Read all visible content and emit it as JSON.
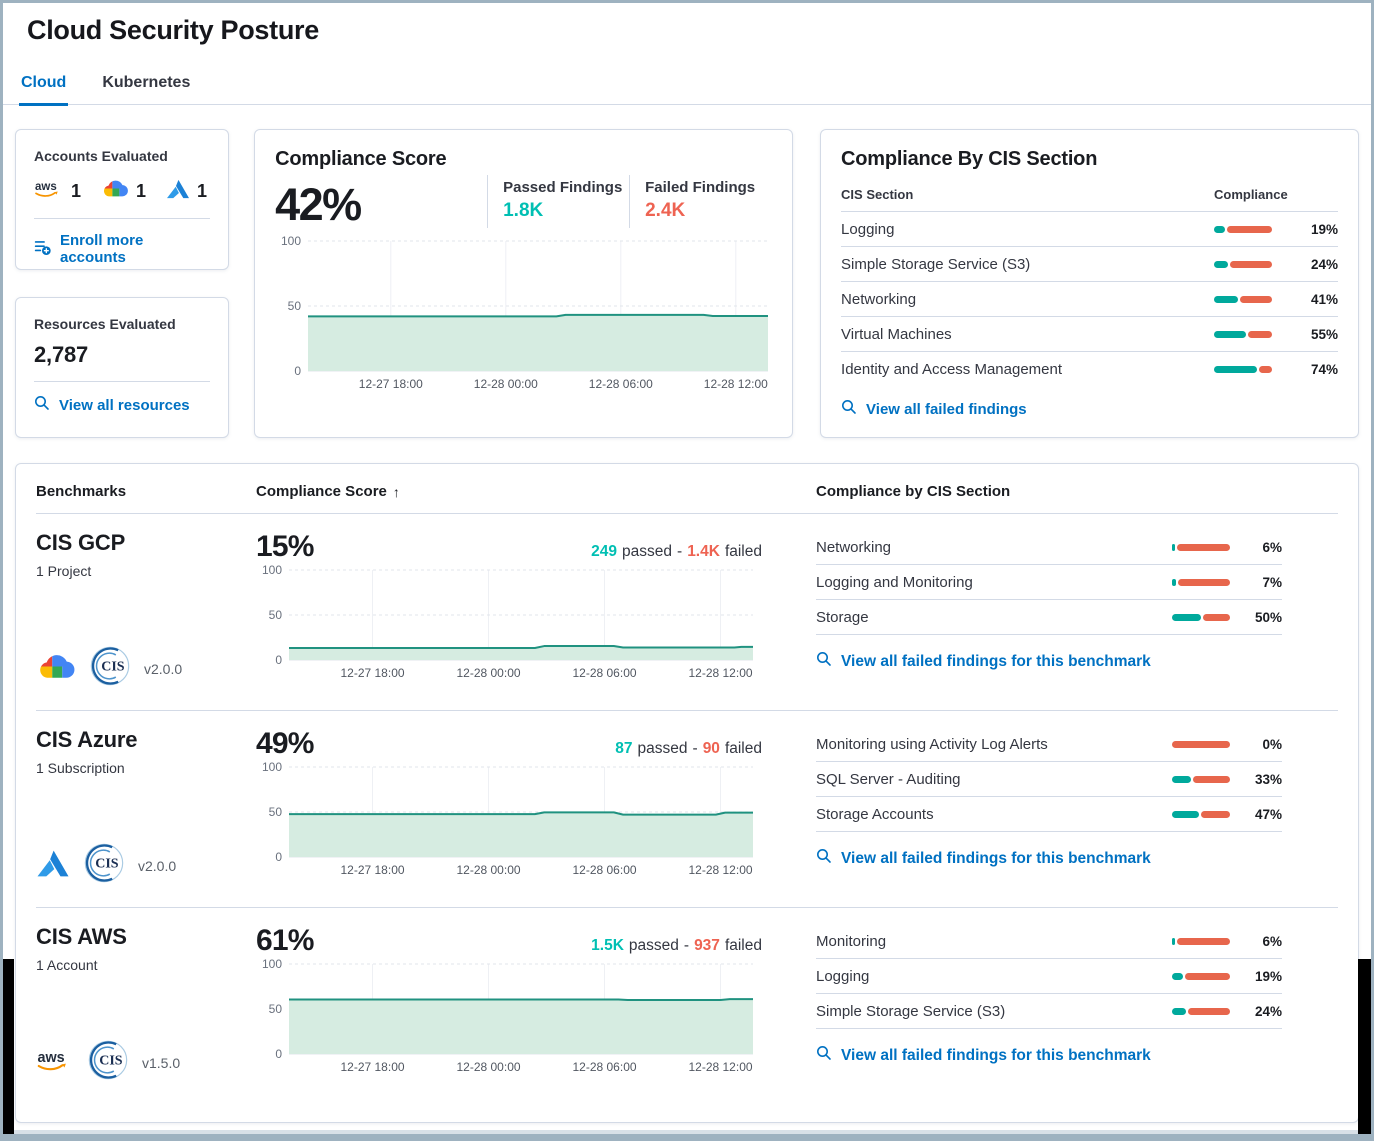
{
  "page": {
    "title": "Cloud Security Posture"
  },
  "tabs": {
    "items": [
      {
        "label": "Cloud"
      },
      {
        "label": "Kubernetes"
      }
    ]
  },
  "theme": {
    "link_blue": "#0071C2",
    "passed_teal": "#00BFB3",
    "failed_red": "#EE6352",
    "bar_teal": "#00A99C",
    "bar_red": "#E7664C",
    "chart_line": "#209280",
    "chart_fill": "#D6ECE1"
  },
  "accounts_card": {
    "title": "Accounts Evaluated",
    "providers": [
      {
        "provider": "aws",
        "count": "1"
      },
      {
        "provider": "gcp",
        "count": "1"
      },
      {
        "provider": "azure",
        "count": "1"
      }
    ],
    "link": "Enroll more accounts"
  },
  "resources_card": {
    "title": "Resources Evaluated",
    "value": "2,787",
    "link": "View all resources"
  },
  "score_card": {
    "title": "Compliance Score",
    "score": "42%",
    "passed_label": "Passed Findings",
    "passed_value": "1.8K",
    "failed_label": "Failed Findings",
    "failed_value": "2.4K"
  },
  "cis_card": {
    "title": "Compliance By CIS Section",
    "col_section": "CIS Section",
    "col_compliance": "Compliance",
    "rows": [
      {
        "name": "Logging",
        "pct": 19,
        "pct_label": "19%"
      },
      {
        "name": "Simple Storage Service (S3)",
        "pct": 24,
        "pct_label": "24%"
      },
      {
        "name": "Networking",
        "pct": 41,
        "pct_label": "41%"
      },
      {
        "name": "Virtual Machines",
        "pct": 55,
        "pct_label": "55%"
      },
      {
        "name": "Identity and Access Management",
        "pct": 74,
        "pct_label": "74%"
      }
    ],
    "link": "View all failed findings"
  },
  "benchmarks": {
    "col_benchmarks": "Benchmarks",
    "col_score": "Compliance Score",
    "sort_arrow": "↑",
    "col_cis": "Compliance by CIS Section",
    "passed_word": "passed",
    "dash": "-",
    "failed_word": "failed",
    "rows": [
      {
        "name": "CIS GCP",
        "subtitle": "1 Project",
        "version": "v2.0.0",
        "score": "15%",
        "passed_value": "249",
        "failed_value": "1.4K",
        "sections": [
          {
            "name": "Networking",
            "pct": 6,
            "pct_label": "6%"
          },
          {
            "name": "Logging and Monitoring",
            "pct": 7,
            "pct_label": "7%"
          },
          {
            "name": "Storage",
            "pct": 50,
            "pct_label": "50%"
          }
        ],
        "link": "View all failed findings for this benchmark"
      },
      {
        "name": "CIS Azure",
        "subtitle": "1 Subscription",
        "version": "v2.0.0",
        "score": "49%",
        "passed_value": "87",
        "failed_value": "90",
        "sections": [
          {
            "name": "Monitoring using Activity Log Alerts",
            "pct": 0,
            "pct_label": "0%"
          },
          {
            "name": "SQL Server - Auditing",
            "pct": 33,
            "pct_label": "33%"
          },
          {
            "name": "Storage Accounts",
            "pct": 47,
            "pct_label": "47%"
          }
        ],
        "link": "View all failed findings for this benchmark"
      },
      {
        "name": "CIS AWS",
        "subtitle": "1 Account",
        "version": "v1.5.0",
        "score": "61%",
        "passed_value": "1.5K",
        "failed_value": "937",
        "sections": [
          {
            "name": "Monitoring",
            "pct": 6,
            "pct_label": "6%"
          },
          {
            "name": "Logging",
            "pct": 19,
            "pct_label": "19%"
          },
          {
            "name": "Simple Storage Service (S3)",
            "pct": 24,
            "pct_label": "24%"
          }
        ],
        "link": "View all failed findings for this benchmark"
      }
    ]
  },
  "chart_data": [
    {
      "type": "area",
      "title": "Overall compliance score trend",
      "ylim": [
        0,
        100
      ],
      "yticks": [
        0,
        50,
        100
      ],
      "xtick_pos": [
        0.18,
        0.43,
        0.68,
        0.93
      ],
      "xtick_labels": [
        "12-27 18:00",
        "12-28 00:00",
        "12-28 06:00",
        "12-28 12:00"
      ],
      "points": [
        [
          0,
          42
        ],
        [
          0.54,
          42
        ],
        [
          0.56,
          43.2
        ],
        [
          0.86,
          43.2
        ],
        [
          0.88,
          42.3
        ],
        [
          1,
          42.3
        ]
      ]
    },
    {
      "type": "area",
      "title": "CIS GCP compliance score trend",
      "ylim": [
        0,
        100
      ],
      "yticks": [
        0,
        50,
        100
      ],
      "xtick_pos": [
        0.18,
        0.43,
        0.68,
        0.93
      ],
      "xtick_labels": [
        "12-27 18:00",
        "12-28 00:00",
        "12-28 06:00",
        "12-28 12:00"
      ],
      "points": [
        [
          0,
          13.3
        ],
        [
          0.53,
          13.3
        ],
        [
          0.55,
          15.5
        ],
        [
          0.7,
          15.5
        ],
        [
          0.72,
          13.9
        ],
        [
          0.96,
          13.9
        ],
        [
          0.975,
          14.6
        ],
        [
          1,
          14.6
        ]
      ]
    },
    {
      "type": "area",
      "title": "CIS Azure compliance score trend",
      "ylim": [
        0,
        100
      ],
      "yticks": [
        0,
        50,
        100
      ],
      "xtick_pos": [
        0.18,
        0.43,
        0.68,
        0.93
      ],
      "xtick_labels": [
        "12-27 18:00",
        "12-28 00:00",
        "12-28 06:00",
        "12-28 12:00"
      ],
      "points": [
        [
          0,
          47.6
        ],
        [
          0.53,
          47.6
        ],
        [
          0.55,
          49.6
        ],
        [
          0.7,
          49.6
        ],
        [
          0.72,
          47.1
        ],
        [
          0.92,
          47.1
        ],
        [
          0.94,
          49.3
        ],
        [
          1,
          49.3
        ]
      ]
    },
    {
      "type": "area",
      "title": "CIS AWS compliance score trend",
      "ylim": [
        0,
        100
      ],
      "yticks": [
        0,
        50,
        100
      ],
      "xtick_pos": [
        0.18,
        0.43,
        0.68,
        0.93
      ],
      "xtick_labels": [
        "12-27 18:00",
        "12-28 00:00",
        "12-28 06:00",
        "12-28 12:00"
      ],
      "points": [
        [
          0,
          60.5
        ],
        [
          0.71,
          60.5
        ],
        [
          0.73,
          60
        ],
        [
          0.93,
          60
        ],
        [
          0.95,
          61
        ],
        [
          1,
          61
        ]
      ]
    }
  ]
}
